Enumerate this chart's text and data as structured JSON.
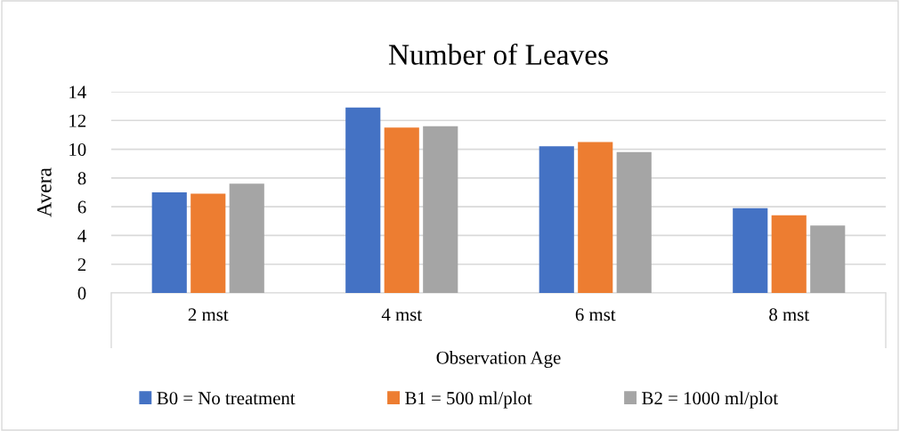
{
  "chart_data": {
    "type": "bar",
    "title": "Number of Leaves",
    "xlabel": "Observation Age",
    "ylabel": "Avera",
    "categories": [
      "2 mst",
      "4 mst",
      "6 mst",
      "8 mst"
    ],
    "series": [
      {
        "name": "B0 = No treatment",
        "color": "#4472c4",
        "values": [
          7.0,
          12.9,
          10.2,
          5.9
        ]
      },
      {
        "name": "B1 = 500 ml/plot",
        "color": "#ed7d31",
        "values": [
          6.9,
          11.5,
          10.5,
          5.4
        ]
      },
      {
        "name": "B2 = 1000 ml/plot",
        "color": "#a5a5a5",
        "values": [
          7.6,
          11.6,
          9.8,
          4.7
        ]
      }
    ],
    "ylim": [
      0,
      14
    ],
    "yticks": [
      0,
      2,
      4,
      6,
      8,
      10,
      12,
      14
    ],
    "grid": "y",
    "legend": "bottom"
  }
}
